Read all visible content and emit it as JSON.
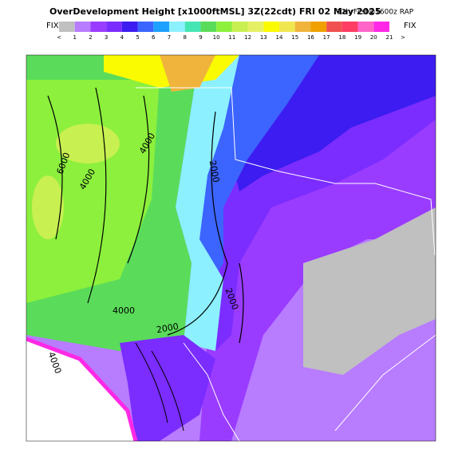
{
  "header": {
    "title": "OverDevelopment Height [x1000ftMSL] 3Z(22cdt) FRI 02 May 2025",
    "subtitle": "12hrFcst@1600z RAP"
  },
  "colorbar": {
    "left_label": "FIX",
    "right_label": "FIX",
    "labels": [
      "<",
      1,
      2,
      3,
      4,
      5,
      6,
      7,
      8,
      9,
      10,
      11,
      12,
      13,
      14,
      15,
      16,
      17,
      18,
      19,
      20,
      21,
      ">"
    ],
    "colors": [
      "#c0c0c0",
      "#b87cff",
      "#9a3cff",
      "#7b2cff",
      "#3c1cf0",
      "#3c64ff",
      "#1ea0ff",
      "#8cf0ff",
      "#46e6b4",
      "#5adc5a",
      "#8cf03c",
      "#c8f050",
      "#e6f064",
      "#fafa00",
      "#f0e650",
      "#f0b43c",
      "#f0a000",
      "#f05050",
      "#ff3c64",
      "#ff64c8",
      "#ff28e6"
    ]
  },
  "map": {
    "contour_labels": [
      "6000",
      "4000",
      "4000",
      "2000",
      "2000",
      "4000",
      "2000",
      "4000"
    ]
  }
}
